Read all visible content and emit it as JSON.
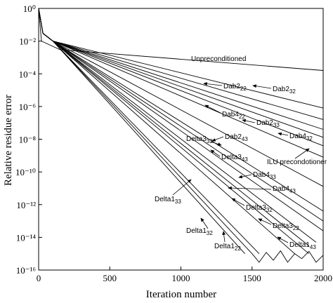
{
  "chart_data": {
    "type": "line",
    "x_label": "Iteration number",
    "y_label": "Relative residue error",
    "log_y": true,
    "xlim": [
      0,
      2000
    ],
    "xticks": [
      0,
      500,
      1000,
      1500,
      2000
    ],
    "ylim": [
      1e-16,
      1
    ],
    "yticks": [
      {
        "value": 1e-16,
        "label": "10⁻¹⁶"
      },
      {
        "value": 1e-14,
        "label": "10⁻¹⁴"
      },
      {
        "value": 1e-12,
        "label": "10⁻¹²"
      },
      {
        "value": 1e-10,
        "label": "10⁻¹⁰"
      },
      {
        "value": 1e-08,
        "label": "10⁻⁸"
      },
      {
        "value": 1e-06,
        "label": "10⁻⁶"
      },
      {
        "value": 0.0001,
        "label": "10⁻⁴"
      },
      {
        "value": 0.01,
        "label": "10⁻²"
      },
      {
        "value": 1,
        "label": "10⁰"
      }
    ],
    "color": "#000000",
    "series": [
      {
        "x": [
          0,
          20,
          150,
          2000
        ],
        "values": [
          1,
          0.01,
          0.003,
          0.00016
        ]
      },
      {
        "x": [
          0,
          30,
          100,
          2000
        ],
        "values": [
          1,
          0.03,
          0.01,
          8e-07
        ]
      },
      {
        "x": [
          0,
          30,
          100,
          2000
        ],
        "values": [
          1,
          0.03,
          0.01,
          1.6e-07
        ]
      },
      {
        "x": [
          0,
          30,
          100,
          2000
        ],
        "values": [
          1,
          0.03,
          0.01,
          4e-08
        ]
      },
      {
        "x": [
          0,
          30,
          100,
          2000
        ],
        "values": [
          1,
          0.03,
          0.01,
          1.3e-08
        ]
      },
      {
        "x": [
          0,
          30,
          100,
          2000
        ],
        "values": [
          1,
          0.03,
          0.01,
          4e-09
        ]
      },
      {
        "x": [
          0,
          30,
          100,
          2000
        ],
        "values": [
          1,
          0.03,
          0.01,
          8e-10
        ]
      },
      {
        "x": [
          0,
          30,
          100,
          2000
        ],
        "values": [
          1,
          0.03,
          0.01,
          1.3e-11
        ]
      },
      {
        "x": [
          0,
          30,
          100,
          2000
        ],
        "values": [
          1,
          0.03,
          0.01,
          4e-13
        ]
      },
      {
        "x": [
          0,
          30,
          100,
          2000
        ],
        "values": [
          1,
          0.03,
          0.01,
          1e-13
        ]
      },
      {
        "x": [
          0,
          30,
          100,
          2000
        ],
        "values": [
          1,
          0.03,
          0.01,
          2.5e-14
        ]
      },
      {
        "x": [
          0,
          30,
          100,
          1950
        ],
        "values": [
          1,
          0.03,
          0.01,
          5e-15
        ]
      },
      {
        "x": [
          0,
          30,
          100,
          1900
        ],
        "values": [
          1,
          0.03,
          0.01,
          3e-15
        ]
      },
      {
        "x": [
          0,
          30,
          100,
          1900
        ],
        "values": [
          1,
          0.03,
          0.01,
          1e-15
        ]
      },
      {
        "x": [
          0,
          30,
          100,
          1800
        ],
        "values": [
          1,
          0.03,
          0.01,
          1e-15
        ]
      },
      {
        "x": [
          0,
          30,
          100,
          1550
        ],
        "values": [
          1,
          0.03,
          0.01,
          1e-15
        ]
      },
      {
        "x": [
          0,
          30,
          100,
          1500
        ],
        "values": [
          1,
          0.03,
          0.01,
          1e-15
        ]
      },
      {
        "x": [
          0,
          30,
          100,
          1450
        ],
        "values": [
          1,
          0.03,
          0.01,
          1e-15
        ]
      },
      {
        "x": [
          1500,
          1550,
          1600,
          1650,
          1700,
          1750,
          1800,
          1850,
          1900,
          1950,
          2000
        ],
        "values": [
          1e-15,
          3e-16,
          1.2e-15,
          4e-16,
          1.5e-15,
          3e-16,
          1e-15,
          5e-16,
          1.4e-15,
          3e-16,
          8e-16
        ]
      }
    ],
    "annotations": [
      {
        "text": "Unpreconditioned"
      },
      {
        "text": "Dab2",
        "subscript": "22"
      },
      {
        "text": "Dab2",
        "subscript": "32"
      },
      {
        "text": "Dab4",
        "subscript": "22"
      },
      {
        "text": "Dab2",
        "subscript": "33"
      },
      {
        "text": "Dab4",
        "subscript": "32"
      },
      {
        "text": "ILU precondotioner"
      },
      {
        "text": "Delta3",
        "subscript": "33"
      },
      {
        "text": "Dab2",
        "subscript": "43"
      },
      {
        "text": "Delta3",
        "subscript": "43"
      },
      {
        "text": "Dab4",
        "subscript": "33"
      },
      {
        "text": "Dab4",
        "subscript": "43"
      },
      {
        "text": "Delta1",
        "subscript": "33"
      },
      {
        "text": "Delta3",
        "subscript": "32"
      },
      {
        "text": "Delta3",
        "subscript": "22"
      },
      {
        "text": "Delta1",
        "subscript": "32"
      },
      {
        "text": "Delta1",
        "subscript": "43"
      },
      {
        "text": "Delta1",
        "subscript": "22"
      }
    ]
  }
}
